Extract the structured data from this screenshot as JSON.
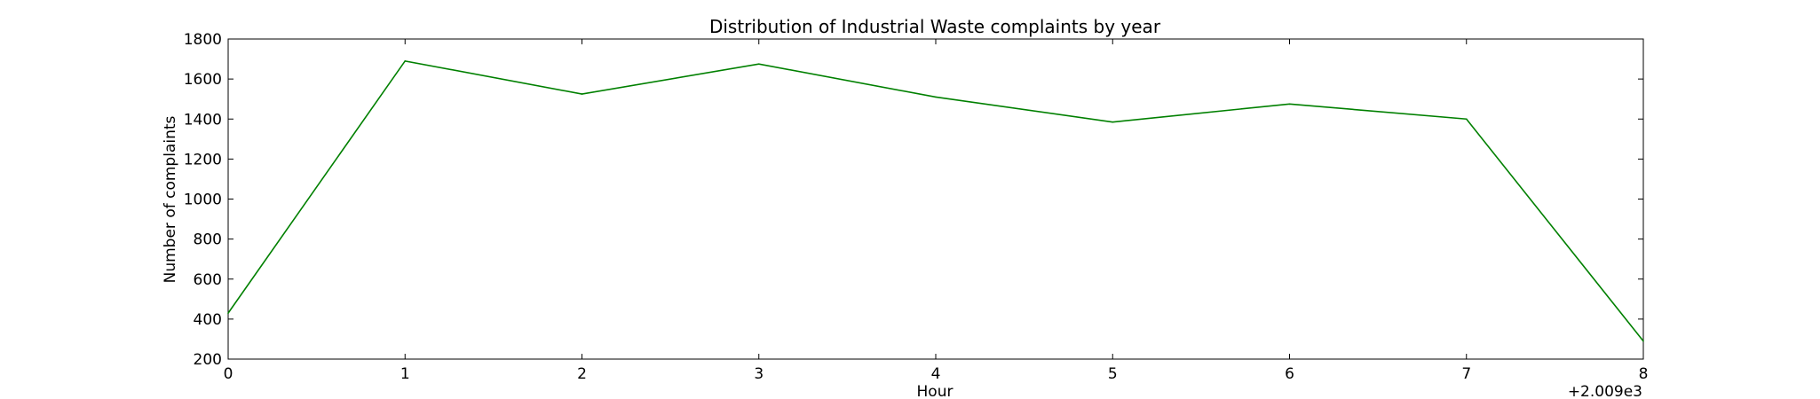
{
  "chart_data": {
    "type": "line",
    "title": "Distribution of  Industrial Waste complaints by year",
    "xlabel": "Hour",
    "ylabel": "Number of complaints",
    "x_offset_label": "+2.009e3",
    "x": [
      2009,
      2010,
      2011,
      2012,
      2013,
      2014,
      2015,
      2016,
      2017
    ],
    "x_tick_labels": [
      "0",
      "1",
      "2",
      "3",
      "4",
      "5",
      "6",
      "7",
      "8"
    ],
    "xlim": [
      2009,
      2017
    ],
    "ylim": [
      200,
      1800
    ],
    "y_ticks": [
      200,
      400,
      600,
      800,
      1000,
      1200,
      1400,
      1600,
      1800
    ],
    "y_tick_labels": [
      "200",
      "400",
      "600",
      "800",
      "1000",
      "1200",
      "1400",
      "1600",
      "1800"
    ],
    "series": [
      {
        "color": "#008000",
        "values": [
          430,
          1690,
          1525,
          1675,
          1510,
          1385,
          1475,
          1400,
          290
        ]
      }
    ],
    "grid": false,
    "legend": "none"
  }
}
